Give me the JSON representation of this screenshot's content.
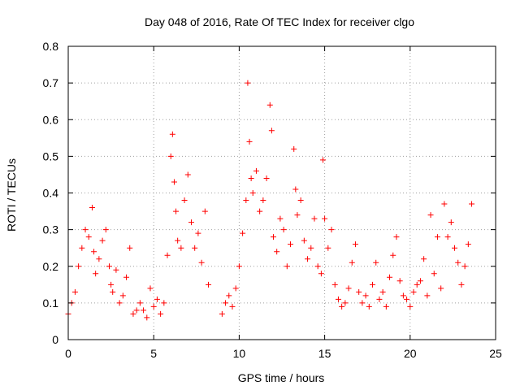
{
  "chart_data": {
    "type": "scatter",
    "title": "Day 048 of 2016, Rate Of TEC Index for receiver clgo",
    "xlabel": "GPS time / hours",
    "ylabel": "ROTI / TECUs",
    "xlim": [
      0,
      25
    ],
    "ylim": [
      0,
      0.8
    ],
    "x_ticks": [
      "0",
      "5",
      "10",
      "15",
      "20",
      "25"
    ],
    "y_ticks": [
      "0",
      "0.1",
      "0.2",
      "0.3",
      "0.4",
      "0.5",
      "0.6",
      "0.7",
      "0.8"
    ],
    "grid": true,
    "marker": "+",
    "color": "#ff0000",
    "series": [
      {
        "name": "ROTI",
        "x": [
          0.0,
          0.2,
          0.4,
          0.6,
          0.8,
          1.0,
          1.2,
          1.4,
          1.5,
          1.6,
          1.8,
          2.0,
          2.2,
          2.4,
          2.5,
          2.6,
          2.8,
          3.0,
          3.2,
          3.4,
          3.6,
          3.8,
          4.0,
          4.2,
          4.4,
          4.6,
          4.8,
          5.0,
          5.2,
          5.4,
          5.6,
          5.8,
          6.0,
          6.1,
          6.2,
          6.3,
          6.4,
          6.6,
          6.8,
          7.0,
          7.2,
          7.4,
          7.6,
          7.8,
          8.0,
          8.2,
          9.0,
          9.2,
          9.4,
          9.6,
          9.8,
          10.0,
          10.2,
          10.4,
          10.5,
          10.6,
          10.7,
          10.8,
          11.0,
          11.2,
          11.4,
          11.6,
          11.8,
          11.9,
          12.0,
          12.2,
          12.4,
          12.6,
          12.8,
          13.0,
          13.2,
          13.3,
          13.4,
          13.6,
          13.8,
          14.0,
          14.2,
          14.4,
          14.6,
          14.8,
          14.9,
          15.0,
          15.2,
          15.4,
          15.6,
          15.8,
          16.0,
          16.2,
          16.4,
          16.6,
          16.8,
          17.0,
          17.2,
          17.4,
          17.6,
          17.8,
          18.0,
          18.2,
          18.4,
          18.6,
          18.8,
          19.0,
          19.2,
          19.4,
          19.6,
          19.8,
          20.0,
          20.2,
          20.4,
          20.6,
          20.8,
          21.0,
          21.2,
          21.4,
          21.6,
          21.8,
          22.0,
          22.2,
          22.4,
          22.6,
          22.8,
          23.0,
          23.2,
          23.4,
          23.6
        ],
        "y": [
          0.07,
          0.1,
          0.13,
          0.2,
          0.25,
          0.3,
          0.28,
          0.36,
          0.24,
          0.18,
          0.22,
          0.27,
          0.3,
          0.2,
          0.15,
          0.13,
          0.19,
          0.1,
          0.12,
          0.17,
          0.25,
          0.07,
          0.08,
          0.1,
          0.08,
          0.06,
          0.14,
          0.09,
          0.11,
          0.07,
          0.1,
          0.23,
          0.5,
          0.56,
          0.43,
          0.35,
          0.27,
          0.25,
          0.38,
          0.45,
          0.32,
          0.25,
          0.29,
          0.21,
          0.35,
          0.15,
          0.07,
          0.1,
          0.12,
          0.09,
          0.14,
          0.2,
          0.29,
          0.38,
          0.7,
          0.54,
          0.44,
          0.4,
          0.46,
          0.35,
          0.38,
          0.44,
          0.64,
          0.57,
          0.28,
          0.24,
          0.33,
          0.3,
          0.2,
          0.26,
          0.52,
          0.41,
          0.34,
          0.38,
          0.27,
          0.22,
          0.25,
          0.33,
          0.2,
          0.18,
          0.49,
          0.33,
          0.25,
          0.3,
          0.15,
          0.11,
          0.09,
          0.1,
          0.14,
          0.21,
          0.26,
          0.13,
          0.1,
          0.12,
          0.09,
          0.15,
          0.21,
          0.11,
          0.13,
          0.09,
          0.17,
          0.23,
          0.28,
          0.16,
          0.12,
          0.11,
          0.09,
          0.13,
          0.15,
          0.16,
          0.22,
          0.12,
          0.34,
          0.18,
          0.28,
          0.14,
          0.37,
          0.28,
          0.32,
          0.25,
          0.21,
          0.15,
          0.2,
          0.26,
          0.37
        ]
      }
    ]
  }
}
